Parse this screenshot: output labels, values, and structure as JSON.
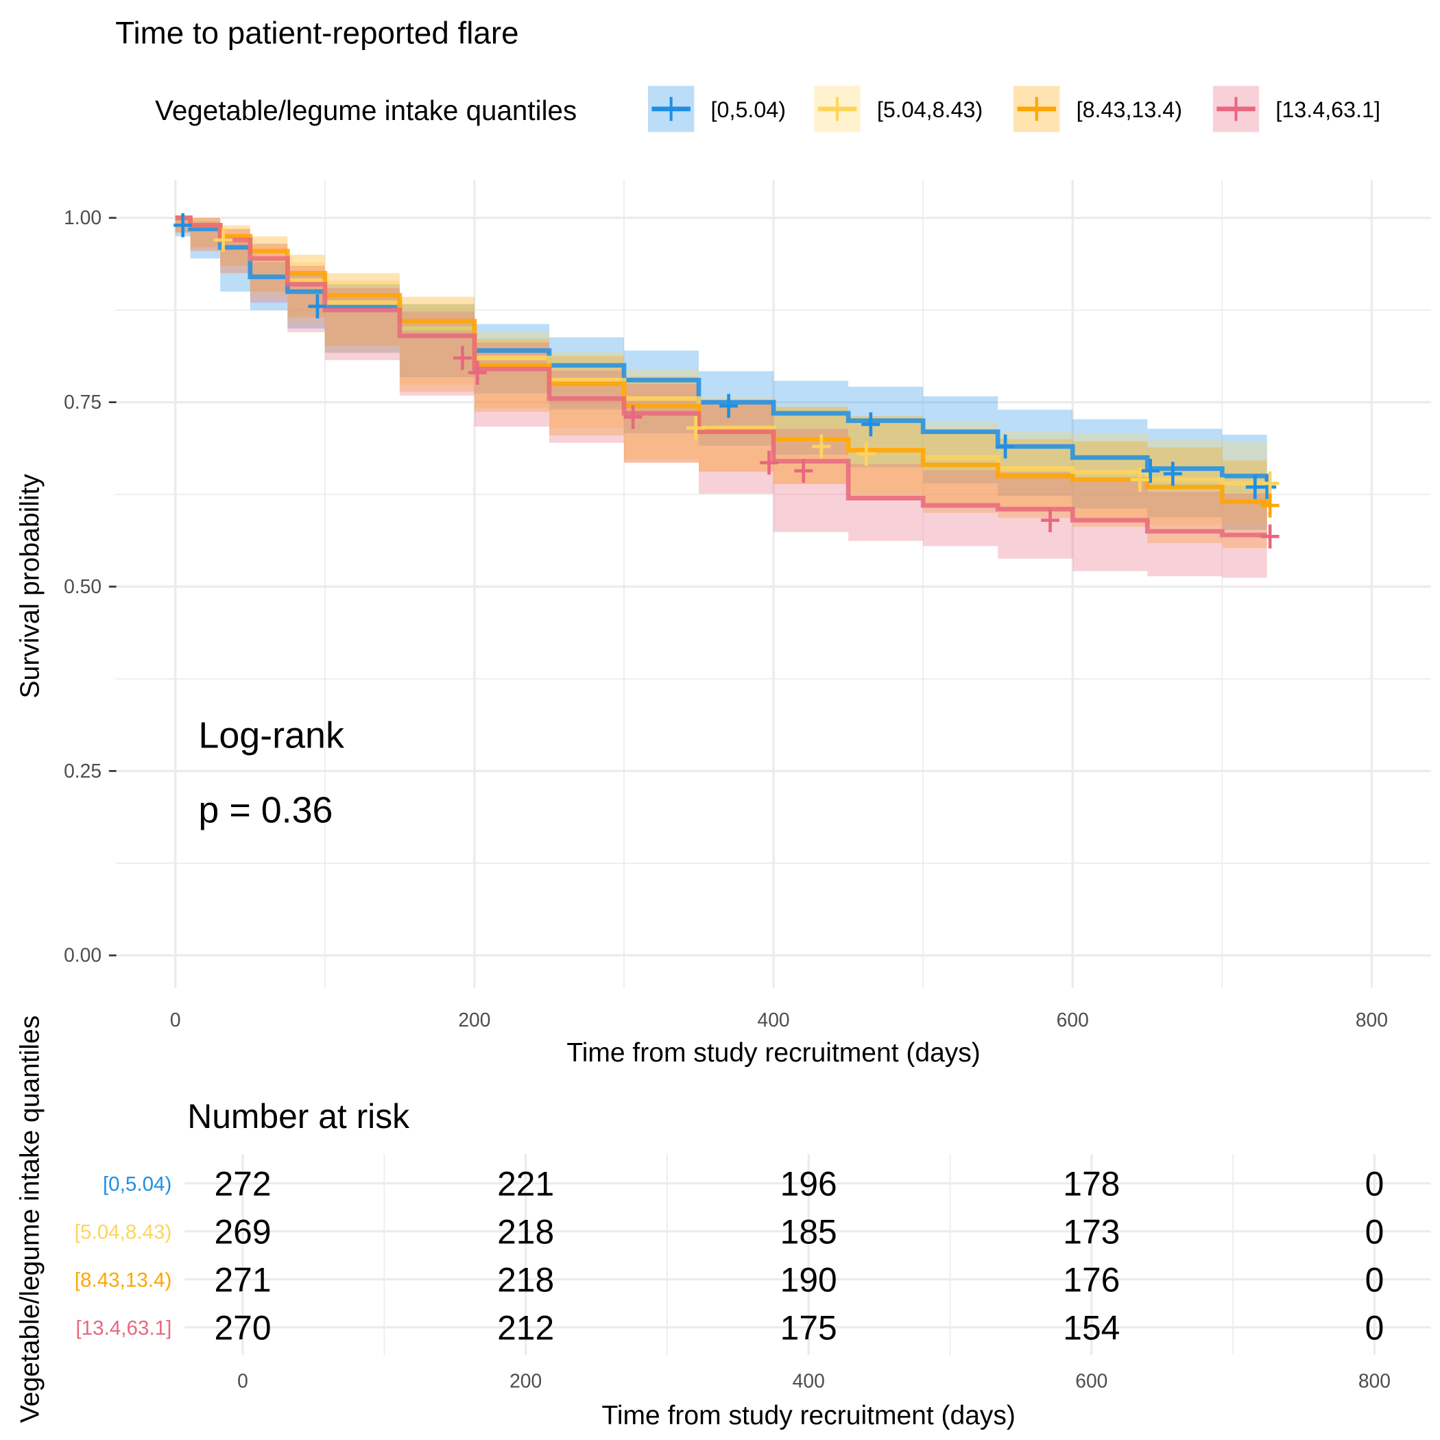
{
  "chart_data": {
    "type": "line",
    "subtype": "kaplan-meier step curves with confidence bands and censor marks",
    "title": "Time to patient-reported flare",
    "xlabel": "Time from study recruitment (days)",
    "ylabel": "Survival probability",
    "xlim": [
      0,
      800
    ],
    "ylim": [
      0,
      1
    ],
    "x_ticks": [
      "0",
      "200",
      "400",
      "600",
      "800"
    ],
    "y_ticks": [
      "0.00",
      "0.25",
      "0.50",
      "0.75",
      "1.00"
    ],
    "grid": true,
    "legend": {
      "title": "Vegetable/legume intake quantiles",
      "placement": "top"
    },
    "annotation": {
      "line1": "Log-rank",
      "line2": "p = 0.36"
    },
    "times": [
      0,
      10,
      30,
      50,
      75,
      100,
      150,
      200,
      250,
      300,
      350,
      400,
      450,
      500,
      550,
      600,
      650,
      700,
      730
    ],
    "series": [
      {
        "name": "[0,5.04)",
        "color": "#1F8FE5",
        "surv": [
          1,
          0.985,
          0.96,
          0.92,
          0.9,
          0.88,
          0.85,
          0.82,
          0.8,
          0.78,
          0.75,
          0.735,
          0.725,
          0.71,
          0.69,
          0.675,
          0.66,
          0.65,
          0.635
        ],
        "upper": [
          1,
          0.995,
          0.975,
          0.94,
          0.925,
          0.91,
          0.883,
          0.856,
          0.838,
          0.82,
          0.792,
          0.779,
          0.771,
          0.758,
          0.74,
          0.727,
          0.714,
          0.706,
          0.693
        ],
        "lower": [
          1,
          0.975,
          0.945,
          0.9,
          0.875,
          0.85,
          0.817,
          0.784,
          0.762,
          0.74,
          0.708,
          0.691,
          0.679,
          0.662,
          0.64,
          0.623,
          0.606,
          0.594,
          0.577
        ],
        "censor": [
          [
            5,
            0.99
          ],
          [
            95,
            0.88
          ],
          [
            370,
            0.745
          ],
          [
            465,
            0.72
          ],
          [
            555,
            0.69
          ],
          [
            652,
            0.657
          ],
          [
            667,
            0.653
          ],
          [
            722,
            0.635
          ],
          [
            730,
            0.635
          ]
        ]
      },
      {
        "name": "[5.04,8.43)",
        "color": "#FFD45C",
        "surv": [
          1,
          0.99,
          0.97,
          0.945,
          0.915,
          0.885,
          0.85,
          0.81,
          0.78,
          0.755,
          0.715,
          0.7,
          0.685,
          0.675,
          0.66,
          0.655,
          0.645,
          0.64,
          0.64
        ],
        "upper": [
          1,
          1,
          0.985,
          0.965,
          0.94,
          0.915,
          0.883,
          0.846,
          0.818,
          0.795,
          0.757,
          0.744,
          0.731,
          0.723,
          0.71,
          0.707,
          0.699,
          0.696,
          0.698
        ],
        "lower": [
          1,
          0.98,
          0.955,
          0.925,
          0.89,
          0.855,
          0.817,
          0.774,
          0.742,
          0.715,
          0.673,
          0.656,
          0.639,
          0.627,
          0.61,
          0.603,
          0.591,
          0.584,
          0.582
        ],
        "censor": [
          [
            32,
            0.97
          ],
          [
            348,
            0.715
          ],
          [
            432,
            0.69
          ],
          [
            462,
            0.68
          ],
          [
            645,
            0.645
          ],
          [
            732,
            0.64
          ]
        ]
      },
      {
        "name": "[8.43,13.4)",
        "color": "#FFA500",
        "surv": [
          1,
          0.99,
          0.975,
          0.955,
          0.925,
          0.895,
          0.86,
          0.8,
          0.775,
          0.745,
          0.71,
          0.7,
          0.685,
          0.665,
          0.65,
          0.645,
          0.635,
          0.615,
          0.61
        ],
        "upper": [
          1,
          1,
          0.99,
          0.975,
          0.95,
          0.925,
          0.893,
          0.836,
          0.813,
          0.785,
          0.752,
          0.744,
          0.731,
          0.713,
          0.7,
          0.697,
          0.689,
          0.671,
          0.668
        ],
        "lower": [
          1,
          0.98,
          0.96,
          0.935,
          0.9,
          0.865,
          0.827,
          0.764,
          0.737,
          0.705,
          0.668,
          0.656,
          0.639,
          0.617,
          0.6,
          0.593,
          0.581,
          0.559,
          0.552
        ],
        "censor": [
          [
            732,
            0.61
          ]
        ]
      },
      {
        "name": "[13.4,63.1]",
        "color": "#E8687F",
        "surv": [
          1,
          0.99,
          0.97,
          0.945,
          0.91,
          0.875,
          0.84,
          0.795,
          0.755,
          0.735,
          0.71,
          0.67,
          0.62,
          0.61,
          0.605,
          0.59,
          0.575,
          0.57,
          0.57
        ],
        "upper": [
          1,
          1,
          0.985,
          0.965,
          0.935,
          0.905,
          0.873,
          0.831,
          0.793,
          0.775,
          0.752,
          0.714,
          0.666,
          0.658,
          0.655,
          0.642,
          0.629,
          0.626,
          0.628
        ],
        "lower": [
          1,
          0.98,
          0.955,
          0.925,
          0.885,
          0.845,
          0.807,
          0.759,
          0.717,
          0.695,
          0.668,
          0.626,
          0.574,
          0.562,
          0.555,
          0.538,
          0.521,
          0.514,
          0.512
        ],
        "censor": [
          [
            192,
            0.81
          ],
          [
            202,
            0.79
          ],
          [
            306,
            0.73
          ],
          [
            397,
            0.668
          ],
          [
            420,
            0.657
          ],
          [
            585,
            0.59
          ],
          [
            732,
            0.568
          ]
        ]
      }
    ]
  },
  "risk_table": {
    "title": "Number at risk",
    "ylabel": "Vegetable/legume intake quantiles",
    "xlabel": "Time from study recruitment (days)",
    "x_ticks": [
      "0",
      "200",
      "400",
      "600",
      "800"
    ],
    "times": [
      0,
      200,
      400,
      600,
      800
    ],
    "rows": [
      {
        "label": "[0,5.04)",
        "values": [
          "272",
          "221",
          "196",
          "178",
          "0"
        ]
      },
      {
        "label": "[5.04,8.43)",
        "values": [
          "269",
          "218",
          "185",
          "173",
          "0"
        ]
      },
      {
        "label": "[8.43,13.4)",
        "values": [
          "271",
          "218",
          "190",
          "176",
          "0"
        ]
      },
      {
        "label": "[13.4,63.1]",
        "values": [
          "270",
          "212",
          "175",
          "154",
          "0"
        ]
      }
    ]
  }
}
